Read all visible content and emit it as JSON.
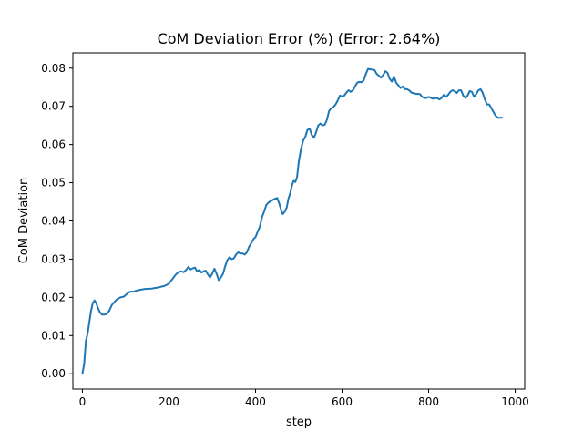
{
  "chart_data": {
    "type": "line",
    "title": "CoM Deviation Error (%) (Error: 2.64%)",
    "xlabel": "step",
    "ylabel": "CoM Deviation",
    "xlim": [
      -22,
      1022
    ],
    "ylim": [
      -0.004,
      0.084
    ],
    "x_ticks": [
      0,
      200,
      400,
      600,
      800,
      1000
    ],
    "x_tick_labels": [
      "0",
      "200",
      "400",
      "600",
      "800",
      "1000"
    ],
    "y_ticks": [
      0.0,
      0.01,
      0.02,
      0.03,
      0.04,
      0.05,
      0.06,
      0.07,
      0.08
    ],
    "y_tick_labels": [
      "0.00",
      "0.01",
      "0.02",
      "0.03",
      "0.04",
      "0.05",
      "0.06",
      "0.07",
      "0.08"
    ],
    "grid": false,
    "line_color": "#1f77b4",
    "series": [
      {
        "points": [
          [
            0,
            0.0
          ],
          [
            4,
            0.0025
          ],
          [
            8,
            0.0085
          ],
          [
            12,
            0.0105
          ],
          [
            16,
            0.0135
          ],
          [
            20,
            0.0165
          ],
          [
            24,
            0.0185
          ],
          [
            28,
            0.0192
          ],
          [
            32,
            0.0185
          ],
          [
            36,
            0.0172
          ],
          [
            40,
            0.0162
          ],
          [
            45,
            0.0155
          ],
          [
            50,
            0.0155
          ],
          [
            56,
            0.0156
          ],
          [
            62,
            0.0165
          ],
          [
            68,
            0.018
          ],
          [
            74,
            0.0188
          ],
          [
            80,
            0.0195
          ],
          [
            88,
            0.02
          ],
          [
            96,
            0.0202
          ],
          [
            104,
            0.021
          ],
          [
            110,
            0.0215
          ],
          [
            118,
            0.0215
          ],
          [
            126,
            0.0218
          ],
          [
            134,
            0.022
          ],
          [
            145,
            0.0222
          ],
          [
            160,
            0.0223
          ],
          [
            175,
            0.0226
          ],
          [
            190,
            0.023
          ],
          [
            200,
            0.0236
          ],
          [
            208,
            0.0248
          ],
          [
            216,
            0.026
          ],
          [
            222,
            0.0266
          ],
          [
            228,
            0.0268
          ],
          [
            234,
            0.0266
          ],
          [
            240,
            0.0272
          ],
          [
            245,
            0.028
          ],
          [
            250,
            0.0273
          ],
          [
            255,
            0.0276
          ],
          [
            260,
            0.0278
          ],
          [
            265,
            0.0268
          ],
          [
            270,
            0.0272
          ],
          [
            275,
            0.0265
          ],
          [
            280,
            0.0268
          ],
          [
            285,
            0.027
          ],
          [
            290,
            0.026
          ],
          [
            295,
            0.0252
          ],
          [
            300,
            0.0262
          ],
          [
            305,
            0.0275
          ],
          [
            310,
            0.0262
          ],
          [
            315,
            0.0245
          ],
          [
            320,
            0.0252
          ],
          [
            325,
            0.0262
          ],
          [
            330,
            0.0282
          ],
          [
            335,
            0.0298
          ],
          [
            340,
            0.0305
          ],
          [
            345,
            0.03
          ],
          [
            350,
            0.0302
          ],
          [
            355,
            0.0312
          ],
          [
            360,
            0.0318
          ],
          [
            365,
            0.0315
          ],
          [
            370,
            0.0315
          ],
          [
            375,
            0.0312
          ],
          [
            380,
            0.0318
          ],
          [
            385,
            0.0332
          ],
          [
            390,
            0.0342
          ],
          [
            395,
            0.0352
          ],
          [
            400,
            0.0358
          ],
          [
            405,
            0.0372
          ],
          [
            410,
            0.0385
          ],
          [
            415,
            0.041
          ],
          [
            420,
            0.0425
          ],
          [
            425,
            0.0442
          ],
          [
            430,
            0.0448
          ],
          [
            435,
            0.0452
          ],
          [
            440,
            0.0455
          ],
          [
            445,
            0.0458
          ],
          [
            450,
            0.046
          ],
          [
            455,
            0.0445
          ],
          [
            460,
            0.0425
          ],
          [
            463,
            0.0418
          ],
          [
            468,
            0.0425
          ],
          [
            472,
            0.0435
          ],
          [
            476,
            0.0458
          ],
          [
            480,
            0.0472
          ],
          [
            484,
            0.0492
          ],
          [
            488,
            0.0505
          ],
          [
            492,
            0.0502
          ],
          [
            496,
            0.0515
          ],
          [
            500,
            0.0555
          ],
          [
            505,
            0.0588
          ],
          [
            510,
            0.061
          ],
          [
            515,
            0.062
          ],
          [
            520,
            0.0638
          ],
          [
            525,
            0.0642
          ],
          [
            530,
            0.0625
          ],
          [
            535,
            0.0618
          ],
          [
            540,
            0.0632
          ],
          [
            545,
            0.065
          ],
          [
            550,
            0.0655
          ],
          [
            555,
            0.065
          ],
          [
            560,
            0.0652
          ],
          [
            565,
            0.0665
          ],
          [
            570,
            0.0688
          ],
          [
            575,
            0.0695
          ],
          [
            580,
            0.0698
          ],
          [
            585,
            0.0705
          ],
          [
            590,
            0.0715
          ],
          [
            595,
            0.0728
          ],
          [
            600,
            0.0726
          ],
          [
            605,
            0.0728
          ],
          [
            610,
            0.0736
          ],
          [
            615,
            0.0742
          ],
          [
            620,
            0.0738
          ],
          [
            625,
            0.0742
          ],
          [
            630,
            0.0752
          ],
          [
            635,
            0.0762
          ],
          [
            640,
            0.0764
          ],
          [
            645,
            0.0763
          ],
          [
            650,
            0.0768
          ],
          [
            655,
            0.0785
          ],
          [
            660,
            0.0798
          ],
          [
            665,
            0.0797
          ],
          [
            670,
            0.0796
          ],
          [
            675,
            0.0795
          ],
          [
            680,
            0.0785
          ],
          [
            685,
            0.078
          ],
          [
            690,
            0.0775
          ],
          [
            695,
            0.0782
          ],
          [
            700,
            0.0792
          ],
          [
            705,
            0.0788
          ],
          [
            710,
            0.0772
          ],
          [
            715,
            0.0765
          ],
          [
            720,
            0.0778
          ],
          [
            725,
            0.0762
          ],
          [
            730,
            0.0755
          ],
          [
            735,
            0.0748
          ],
          [
            740,
            0.0752
          ],
          [
            745,
            0.0745
          ],
          [
            750,
            0.0745
          ],
          [
            755,
            0.0742
          ],
          [
            760,
            0.0736
          ],
          [
            770,
            0.0733
          ],
          [
            780,
            0.0732
          ],
          [
            785,
            0.0725
          ],
          [
            790,
            0.0722
          ],
          [
            795,
            0.0722
          ],
          [
            800,
            0.0725
          ],
          [
            805,
            0.0722
          ],
          [
            810,
            0.072
          ],
          [
            815,
            0.0722
          ],
          [
            820,
            0.0721
          ],
          [
            825,
            0.0718
          ],
          [
            830,
            0.0722
          ],
          [
            835,
            0.073
          ],
          [
            840,
            0.0725
          ],
          [
            845,
            0.073
          ],
          [
            850,
            0.0738
          ],
          [
            855,
            0.0742
          ],
          [
            860,
            0.074
          ],
          [
            865,
            0.0735
          ],
          [
            870,
            0.0742
          ],
          [
            875,
            0.0742
          ],
          [
            880,
            0.0728
          ],
          [
            885,
            0.0722
          ],
          [
            890,
            0.0728
          ],
          [
            895,
            0.074
          ],
          [
            900,
            0.0738
          ],
          [
            905,
            0.0725
          ],
          [
            910,
            0.0732
          ],
          [
            915,
            0.0742
          ],
          [
            920,
            0.0745
          ],
          [
            925,
            0.0735
          ],
          [
            930,
            0.0718
          ],
          [
            935,
            0.0705
          ],
          [
            940,
            0.0705
          ],
          [
            945,
            0.0695
          ],
          [
            950,
            0.0685
          ],
          [
            955,
            0.0675
          ],
          [
            960,
            0.067
          ],
          [
            965,
            0.067
          ],
          [
            970,
            0.067
          ]
        ]
      }
    ]
  }
}
